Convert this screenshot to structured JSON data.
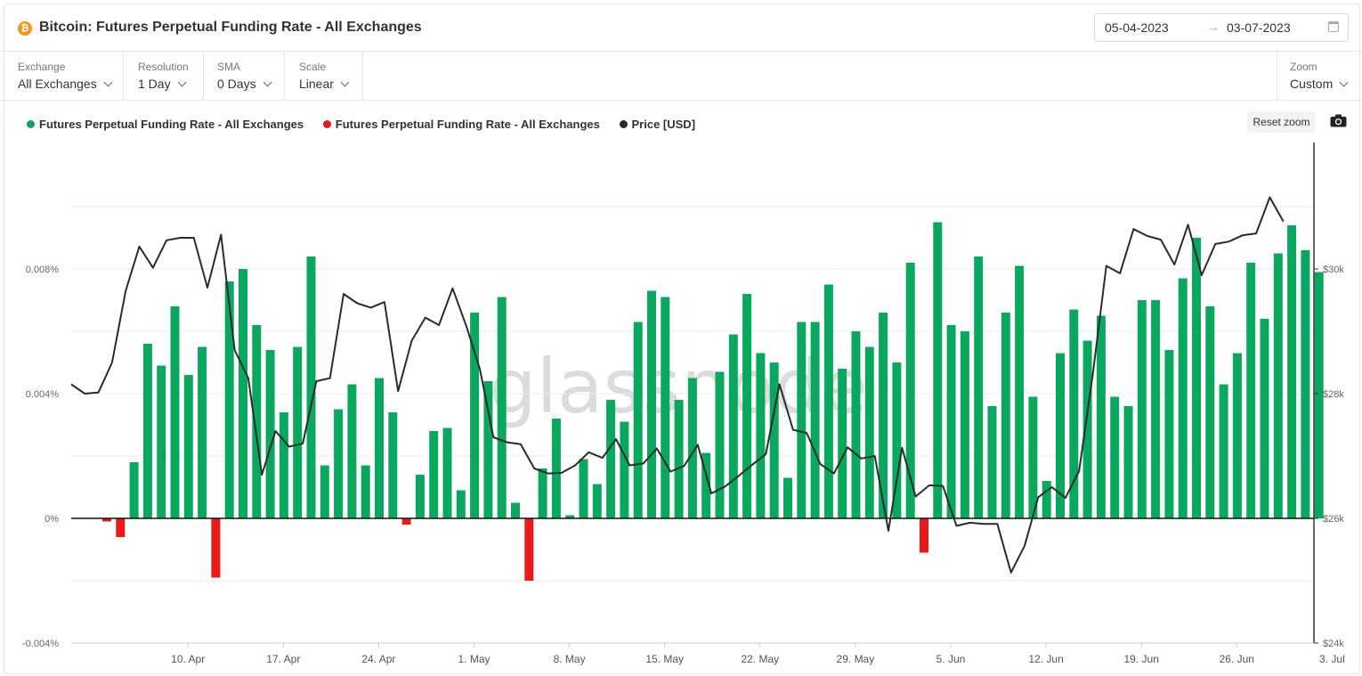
{
  "header": {
    "title": "Bitcoin: Futures Perpetual Funding Rate - All Exchanges",
    "coin_symbol": "₿",
    "date_start": "05-04-2023",
    "date_arrow": "→",
    "date_end": "03-07-2023"
  },
  "controls": {
    "exchange": {
      "label": "Exchange",
      "value": "All Exchanges"
    },
    "resolution": {
      "label": "Resolution",
      "value": "1 Day"
    },
    "sma": {
      "label": "SMA",
      "value": "0 Days"
    },
    "scale": {
      "label": "Scale",
      "value": "Linear"
    },
    "zoom": {
      "label": "Zoom",
      "value": "Custom"
    }
  },
  "toolbar": {
    "reset_zoom": "Reset zoom"
  },
  "watermark": "glassnode",
  "colors": {
    "positive": "#0aa85f",
    "negative": "#ea1a1a",
    "price": "#2b2b2b"
  },
  "chart_data": {
    "type": "bar",
    "legend": [
      {
        "name": "Futures Perpetual Funding Rate - All Exchanges",
        "color": "#0aa85f"
      },
      {
        "name": "Futures Perpetual Funding Rate - All Exchanges",
        "color": "#ea1a1a"
      },
      {
        "name": "Price [USD]",
        "color": "#2b2b2b"
      }
    ],
    "x_start_date": "2023-04-06",
    "x_tick_labels": [
      "10. Apr",
      "17. Apr",
      "24. Apr",
      "1. May",
      "8. May",
      "15. May",
      "22. May",
      "29. May",
      "5. Jun",
      "12. Jun",
      "19. Jun",
      "26. Jun",
      "3. Jul"
    ],
    "y_left_ticks": [
      "0.008%",
      "0.004%",
      "0%",
      "-0.004%"
    ],
    "y_left_range": [
      -0.004,
      0.01
    ],
    "y_right_ticks": [
      "$30k",
      "$28k",
      "$26k",
      "$24k"
    ],
    "y_right_range": [
      24000,
      32000
    ],
    "funding_rate_percent": [
      -0.0001,
      -0.0006,
      0.0018,
      0.0056,
      0.0049,
      0.0068,
      0.0046,
      0.0055,
      -0.0019,
      0.0076,
      0.008,
      0.0062,
      0.0054,
      0.0034,
      0.0055,
      0.0084,
      0.0017,
      0.0035,
      0.0043,
      0.0017,
      0.0045,
      0.0034,
      -0.0002,
      0.0014,
      0.0028,
      0.0029,
      0.0009,
      0.0066,
      0.0044,
      0.0071,
      0.0005,
      -0.002,
      0.0016,
      0.0032,
      0.0001,
      0.0019,
      0.0011,
      0.0038,
      0.0031,
      0.0063,
      0.0073,
      0.0071,
      0.0038,
      0.0045,
      0.0021,
      0.0047,
      0.0059,
      0.0072,
      0.0053,
      0.005,
      0.0013,
      0.0063,
      0.0063,
      0.0075,
      0.0048,
      0.006,
      0.0055,
      0.0066,
      0.005,
      0.0082,
      -0.0011,
      0.0095,
      0.0062,
      0.006,
      0.0084,
      0.0036,
      0.0066,
      0.0081,
      0.0039,
      0.0012,
      0.0053,
      0.0067,
      0.0057,
      0.0065,
      0.0039,
      0.0036,
      0.007,
      0.007,
      0.0054,
      0.0077,
      0.009,
      0.0068,
      0.0043,
      0.0053,
      0.0082,
      0.0064,
      0.0085,
      0.0094,
      0.0086,
      0.0079
    ],
    "price_usd": [
      28150,
      28000,
      28020,
      28500,
      29650,
      30360,
      30020,
      30460,
      30500,
      30500,
      29700,
      30550,
      28700,
      28250,
      26700,
      27400,
      27150,
      27200,
      28200,
      28250,
      29600,
      29450,
      29380,
      29470,
      28040,
      28850,
      29220,
      29100,
      29690,
      29090,
      28400,
      27300,
      27220,
      27190,
      26800,
      26720,
      26730,
      26850,
      27060,
      26970,
      27270,
      26850,
      26880,
      27120,
      26750,
      26840,
      27180,
      26400,
      26510,
      26680,
      26860,
      27030,
      28150,
      27420,
      27370,
      26870,
      26720,
      27140,
      26960,
      27000,
      25800,
      27130,
      26350,
      26530,
      26520,
      25880,
      25930,
      25910,
      25910,
      25130,
      25560,
      26340,
      26500,
      26330,
      26760,
      28300,
      30050,
      29930,
      30640,
      30530,
      30470,
      30070,
      30710,
      29900,
      30400,
      30440,
      30540,
      30570,
      31150,
      30760
    ]
  }
}
